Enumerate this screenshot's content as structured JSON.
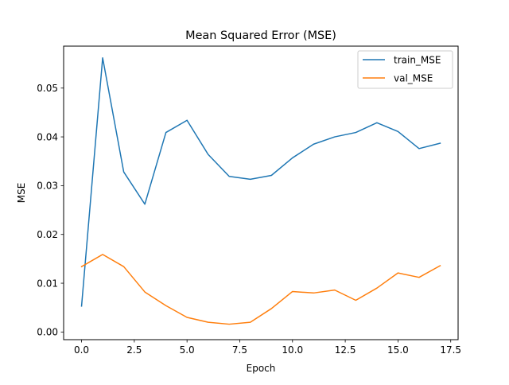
{
  "chart_data": {
    "type": "line",
    "title": "Mean Squared Error (MSE)",
    "xlabel": "Epoch",
    "ylabel": "MSE",
    "xlim": [
      -0.85,
      17.85
    ],
    "ylim": [
      -0.00157,
      0.0586
    ],
    "x_ticks": [
      0.0,
      2.5,
      5.0,
      7.5,
      10.0,
      12.5,
      15.0,
      17.5
    ],
    "x_tick_labels": [
      "0.0",
      "2.5",
      "5.0",
      "7.5",
      "10.0",
      "12.5",
      "15.0",
      "17.5"
    ],
    "y_ticks": [
      0.0,
      0.01,
      0.02,
      0.03,
      0.04,
      0.05
    ],
    "y_tick_labels": [
      "0.00",
      "0.01",
      "0.02",
      "0.03",
      "0.04",
      "0.05"
    ],
    "grid": false,
    "legend_position": "top-right",
    "x": [
      0,
      1,
      2,
      3,
      4,
      5,
      6,
      7,
      8,
      9,
      10,
      11,
      12,
      13,
      14,
      15,
      16,
      17
    ],
    "series": [
      {
        "name": "train_MSE",
        "color": "#1f77b4",
        "values": [
          0.0053,
          0.0562,
          0.0328,
          0.0262,
          0.0409,
          0.0434,
          0.0364,
          0.0319,
          0.0313,
          0.0321,
          0.0357,
          0.0385,
          0.04,
          0.0409,
          0.0429,
          0.0411,
          0.0376,
          0.0387
        ]
      },
      {
        "name": "val_MSE",
        "color": "#ff7f0e",
        "values": [
          0.0134,
          0.0159,
          0.0134,
          0.0082,
          0.0054,
          0.003,
          0.002,
          0.0016,
          0.002,
          0.0048,
          0.0083,
          0.008,
          0.0086,
          0.0065,
          0.009,
          0.0121,
          0.0112,
          0.0136
        ]
      }
    ]
  }
}
